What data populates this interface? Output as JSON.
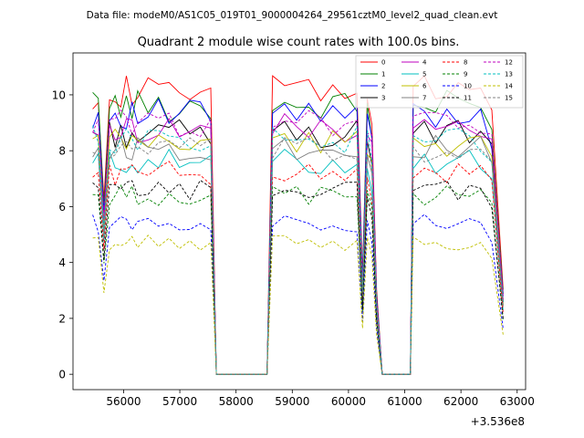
{
  "header": {
    "data_file_label": "Data file: modeM0/AS1C05_019T01_9000004264_29561cztM0_level2_quad_clean.evt"
  },
  "chart_data": {
    "type": "line",
    "title": "Quadrant 2 module wise count rates with 100.0s bins.",
    "xlabel": "",
    "ylabel": "",
    "x_offset_label": "+3.536e8",
    "xlim": [
      55100,
      63150
    ],
    "ylim": [
      -0.55,
      11.5
    ],
    "x_ticks": [
      56000,
      57000,
      58000,
      59000,
      60000,
      61000,
      62000,
      63000
    ],
    "x_tick_labels": [
      "56000",
      "57000",
      "58000",
      "59000",
      "60000",
      "61000",
      "62000",
      "63000"
    ],
    "y_ticks": [
      0,
      2,
      4,
      6,
      8,
      10
    ],
    "y_tick_labels": [
      "0",
      "2",
      "4",
      "6",
      "8",
      "10"
    ],
    "legend_position": "top-right",
    "active_segments": [
      {
        "x_start": 55450,
        "x_end": 56150,
        "profile": [
          1.0,
          1.0,
          0.62,
          1.0,
          1.0,
          1.0,
          1.0,
          1.0
        ]
      },
      {
        "x_start": 56250,
        "x_end": 57550,
        "profile": [
          1.0,
          1.0,
          1.0,
          1.0,
          1.0,
          1.0,
          1.0,
          1.0
        ]
      },
      {
        "x_start": 58650,
        "x_end": 60150,
        "profile": [
          1.0,
          1.0,
          1.0,
          1.0,
          1.0,
          1.0,
          1.0,
          1.0
        ]
      },
      {
        "x_start": 60250,
        "x_end": 60500,
        "profile": [
          0.35,
          1.0,
          0.9,
          0.3
        ]
      },
      {
        "x_start": 61150,
        "x_end": 62750,
        "profile": [
          1.0,
          1.0,
          1.0,
          1.0,
          1.0,
          1.0,
          1.0,
          0.92,
          0.3
        ]
      }
    ],
    "zero_ranges": [
      [
        57650,
        58550
      ],
      [
        60600,
        61100
      ]
    ],
    "series": [
      {
        "name": "0",
        "color": "#ff0000",
        "dash": "solid",
        "level": 10.1
      },
      {
        "name": "1",
        "color": "#008000",
        "dash": "solid",
        "level": 9.6
      },
      {
        "name": "2",
        "color": "#0000ff",
        "dash": "solid",
        "level": 9.3
      },
      {
        "name": "3",
        "color": "#000000",
        "dash": "solid",
        "level": 8.6
      },
      {
        "name": "4",
        "color": "#bf00bf",
        "dash": "solid",
        "level": 8.8
      },
      {
        "name": "5",
        "color": "#00bfbf",
        "dash": "solid",
        "level": 7.6
      },
      {
        "name": "6",
        "color": "#bfbf00",
        "dash": "solid",
        "level": 8.3
      },
      {
        "name": "7",
        "color": "#808080",
        "dash": "solid",
        "level": 8.1
      },
      {
        "name": "8",
        "color": "#ff0000",
        "dash": "dashed",
        "level": 7.2
      },
      {
        "name": "9",
        "color": "#008000",
        "dash": "dashed",
        "level": 6.4
      },
      {
        "name": "10",
        "color": "#0000ff",
        "dash": "dashed",
        "level": 5.4
      },
      {
        "name": "11",
        "color": "#000000",
        "dash": "dashed",
        "level": 6.6
      },
      {
        "name": "12",
        "color": "#bf00bf",
        "dash": "dashed",
        "level": 9.0
      },
      {
        "name": "13",
        "color": "#00bfbf",
        "dash": "dashed",
        "level": 8.4
      },
      {
        "name": "14",
        "color": "#bfbf00",
        "dash": "dashed",
        "level": 4.7
      },
      {
        "name": "15",
        "color": "#808080",
        "dash": "dashed",
        "level": 8.0
      }
    ]
  }
}
